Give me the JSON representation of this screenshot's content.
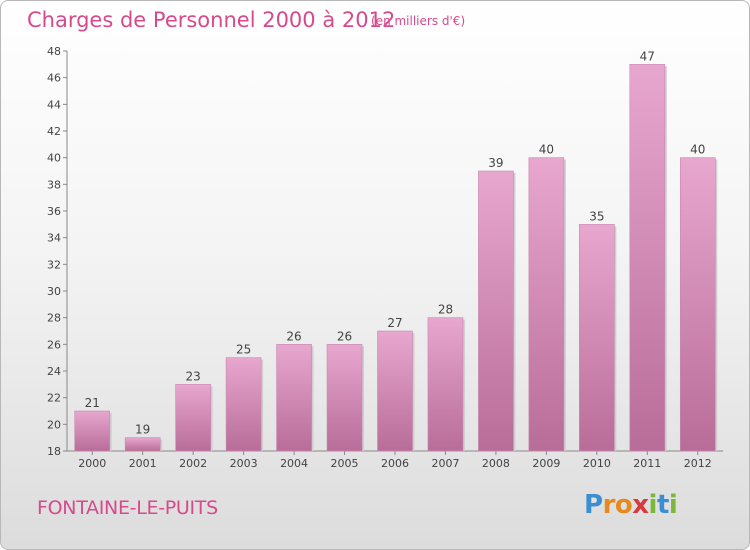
{
  "header": {
    "title": "Charges de Personnel 2000 à 2012",
    "subtitle": "(en milliers d'€)"
  },
  "footer": {
    "commune": "FONTAINE-LE-PUITS",
    "logo_text": "Proxiti",
    "logo_letters": [
      "P",
      "r",
      "o",
      "x",
      "i",
      "t",
      "i"
    ],
    "logo_colors": [
      "#3a8fd0",
      "#e58a1f",
      "#e58a1f",
      "#d63a3a",
      "#7ab83a",
      "#3a8fd0",
      "#7ab83a"
    ]
  },
  "colors": {
    "accent": "#d64a8c",
    "bar_top": "#e8a7cf",
    "bar_bottom": "#b86d98"
  },
  "chart_data": {
    "type": "bar",
    "title": "Charges de Personnel 2000 à 2012",
    "subtitle": "(en milliers d'€)",
    "categories": [
      "2000",
      "2001",
      "2002",
      "2003",
      "2004",
      "2005",
      "2006",
      "2007",
      "2008",
      "2009",
      "2010",
      "2011",
      "2012"
    ],
    "values": [
      21,
      19,
      23,
      25,
      26,
      26,
      27,
      28,
      39,
      40,
      35,
      47,
      40
    ],
    "ylim": [
      18,
      48
    ],
    "yticks": [
      18,
      20,
      22,
      24,
      26,
      28,
      30,
      32,
      34,
      36,
      38,
      40,
      42,
      44,
      46,
      48
    ],
    "grid": false,
    "legend": "none",
    "data_labels": true
  }
}
